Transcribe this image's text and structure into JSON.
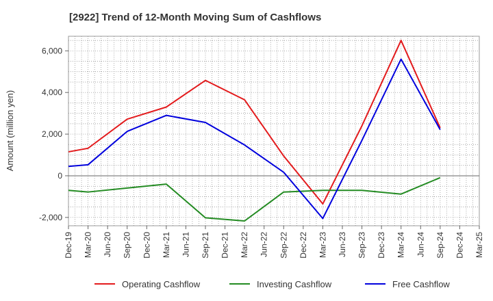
{
  "chart_data": {
    "type": "line",
    "title": "[2922]  Trend of 12-Month Moving Sum of Cashflows",
    "xlabel": "",
    "ylabel": "Amount (million yen)",
    "categories": [
      "Dec-19",
      "Mar-20",
      "Jun-20",
      "Sep-20",
      "Dec-20",
      "Mar-21",
      "Jun-21",
      "Sep-21",
      "Dec-21",
      "Mar-22",
      "Jun-22",
      "Sep-22",
      "Dec-22",
      "Mar-23",
      "Jun-23",
      "Sep-23",
      "Dec-23",
      "Mar-24",
      "Jun-24",
      "Sep-24",
      "Dec-24",
      "Mar-25"
    ],
    "ylim": [
      -2400,
      6700
    ],
    "yticks": [
      -2000,
      0,
      2000,
      4000,
      6000
    ],
    "ytick_labels": [
      "-2,000",
      "0",
      "2,000",
      "4,000",
      "6,000"
    ],
    "grid": true,
    "legend_position": "bottom",
    "series": [
      {
        "name": "Operating Cashflow",
        "color": "#e31a1c",
        "points": [
          [
            "Dec-19",
            1150
          ],
          [
            "Mar-20",
            1320
          ],
          [
            "Sep-20",
            2720
          ],
          [
            "Mar-21",
            3300
          ],
          [
            "Sep-21",
            4580
          ],
          [
            "Mar-22",
            3650
          ],
          [
            "Sep-22",
            950
          ],
          [
            "Mar-23",
            -1350
          ],
          [
            "Sep-23",
            2400
          ],
          [
            "Mar-24",
            6500
          ],
          [
            "Sep-24",
            2300
          ]
        ]
      },
      {
        "name": "Investing Cashflow",
        "color": "#238b22",
        "points": [
          [
            "Dec-19",
            -700
          ],
          [
            "Mar-20",
            -780
          ],
          [
            "Sep-20",
            -590
          ],
          [
            "Mar-21",
            -400
          ],
          [
            "Sep-21",
            -2020
          ],
          [
            "Mar-22",
            -2170
          ],
          [
            "Sep-22",
            -780
          ],
          [
            "Mar-23",
            -700
          ],
          [
            "Sep-23",
            -700
          ],
          [
            "Mar-24",
            -880
          ],
          [
            "Sep-24",
            -90
          ]
        ]
      },
      {
        "name": "Free Cashflow",
        "color": "#0000dd",
        "points": [
          [
            "Dec-19",
            450
          ],
          [
            "Mar-20",
            530
          ],
          [
            "Sep-20",
            2130
          ],
          [
            "Mar-21",
            2900
          ],
          [
            "Sep-21",
            2560
          ],
          [
            "Mar-22",
            1480
          ],
          [
            "Sep-22",
            170
          ],
          [
            "Mar-23",
            -2050
          ],
          [
            "Sep-23",
            1700
          ],
          [
            "Mar-24",
            5600
          ],
          [
            "Sep-24",
            2210
          ]
        ]
      }
    ]
  }
}
